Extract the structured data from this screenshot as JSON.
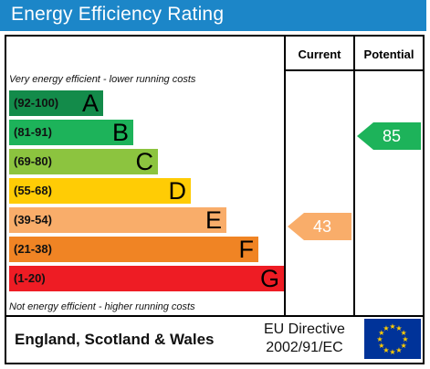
{
  "title": "Energy Efficiency Rating",
  "columns": {
    "current": "Current",
    "potential": "Potential"
  },
  "notes": {
    "top": "Very energy efficient - lower running costs",
    "bottom": "Not energy efficient - higher running costs"
  },
  "bands": [
    {
      "range": "(92-100)",
      "letter": "A",
      "color": "#138b4a"
    },
    {
      "range": "(81-91)",
      "letter": "B",
      "color": "#1db35a"
    },
    {
      "range": "(69-80)",
      "letter": "C",
      "color": "#8cc43f"
    },
    {
      "range": "(55-68)",
      "letter": "D",
      "color": "#ffcc05"
    },
    {
      "range": "(39-54)",
      "letter": "E",
      "color": "#f9ad6a"
    },
    {
      "range": "(21-38)",
      "letter": "F",
      "color": "#f08424"
    },
    {
      "range": "(1-20)",
      "letter": "G",
      "color": "#ee1c24"
    }
  ],
  "current": {
    "value": "43",
    "band": "E",
    "color": "#f9ad6a"
  },
  "potential": {
    "value": "85",
    "band": "B",
    "color": "#1db35a"
  },
  "footer": {
    "country": "England, Scotland & Wales",
    "directive_line1": "EU Directive",
    "directive_line2": "2002/91/EC",
    "flag_icon": "eu-flag-icon"
  }
}
